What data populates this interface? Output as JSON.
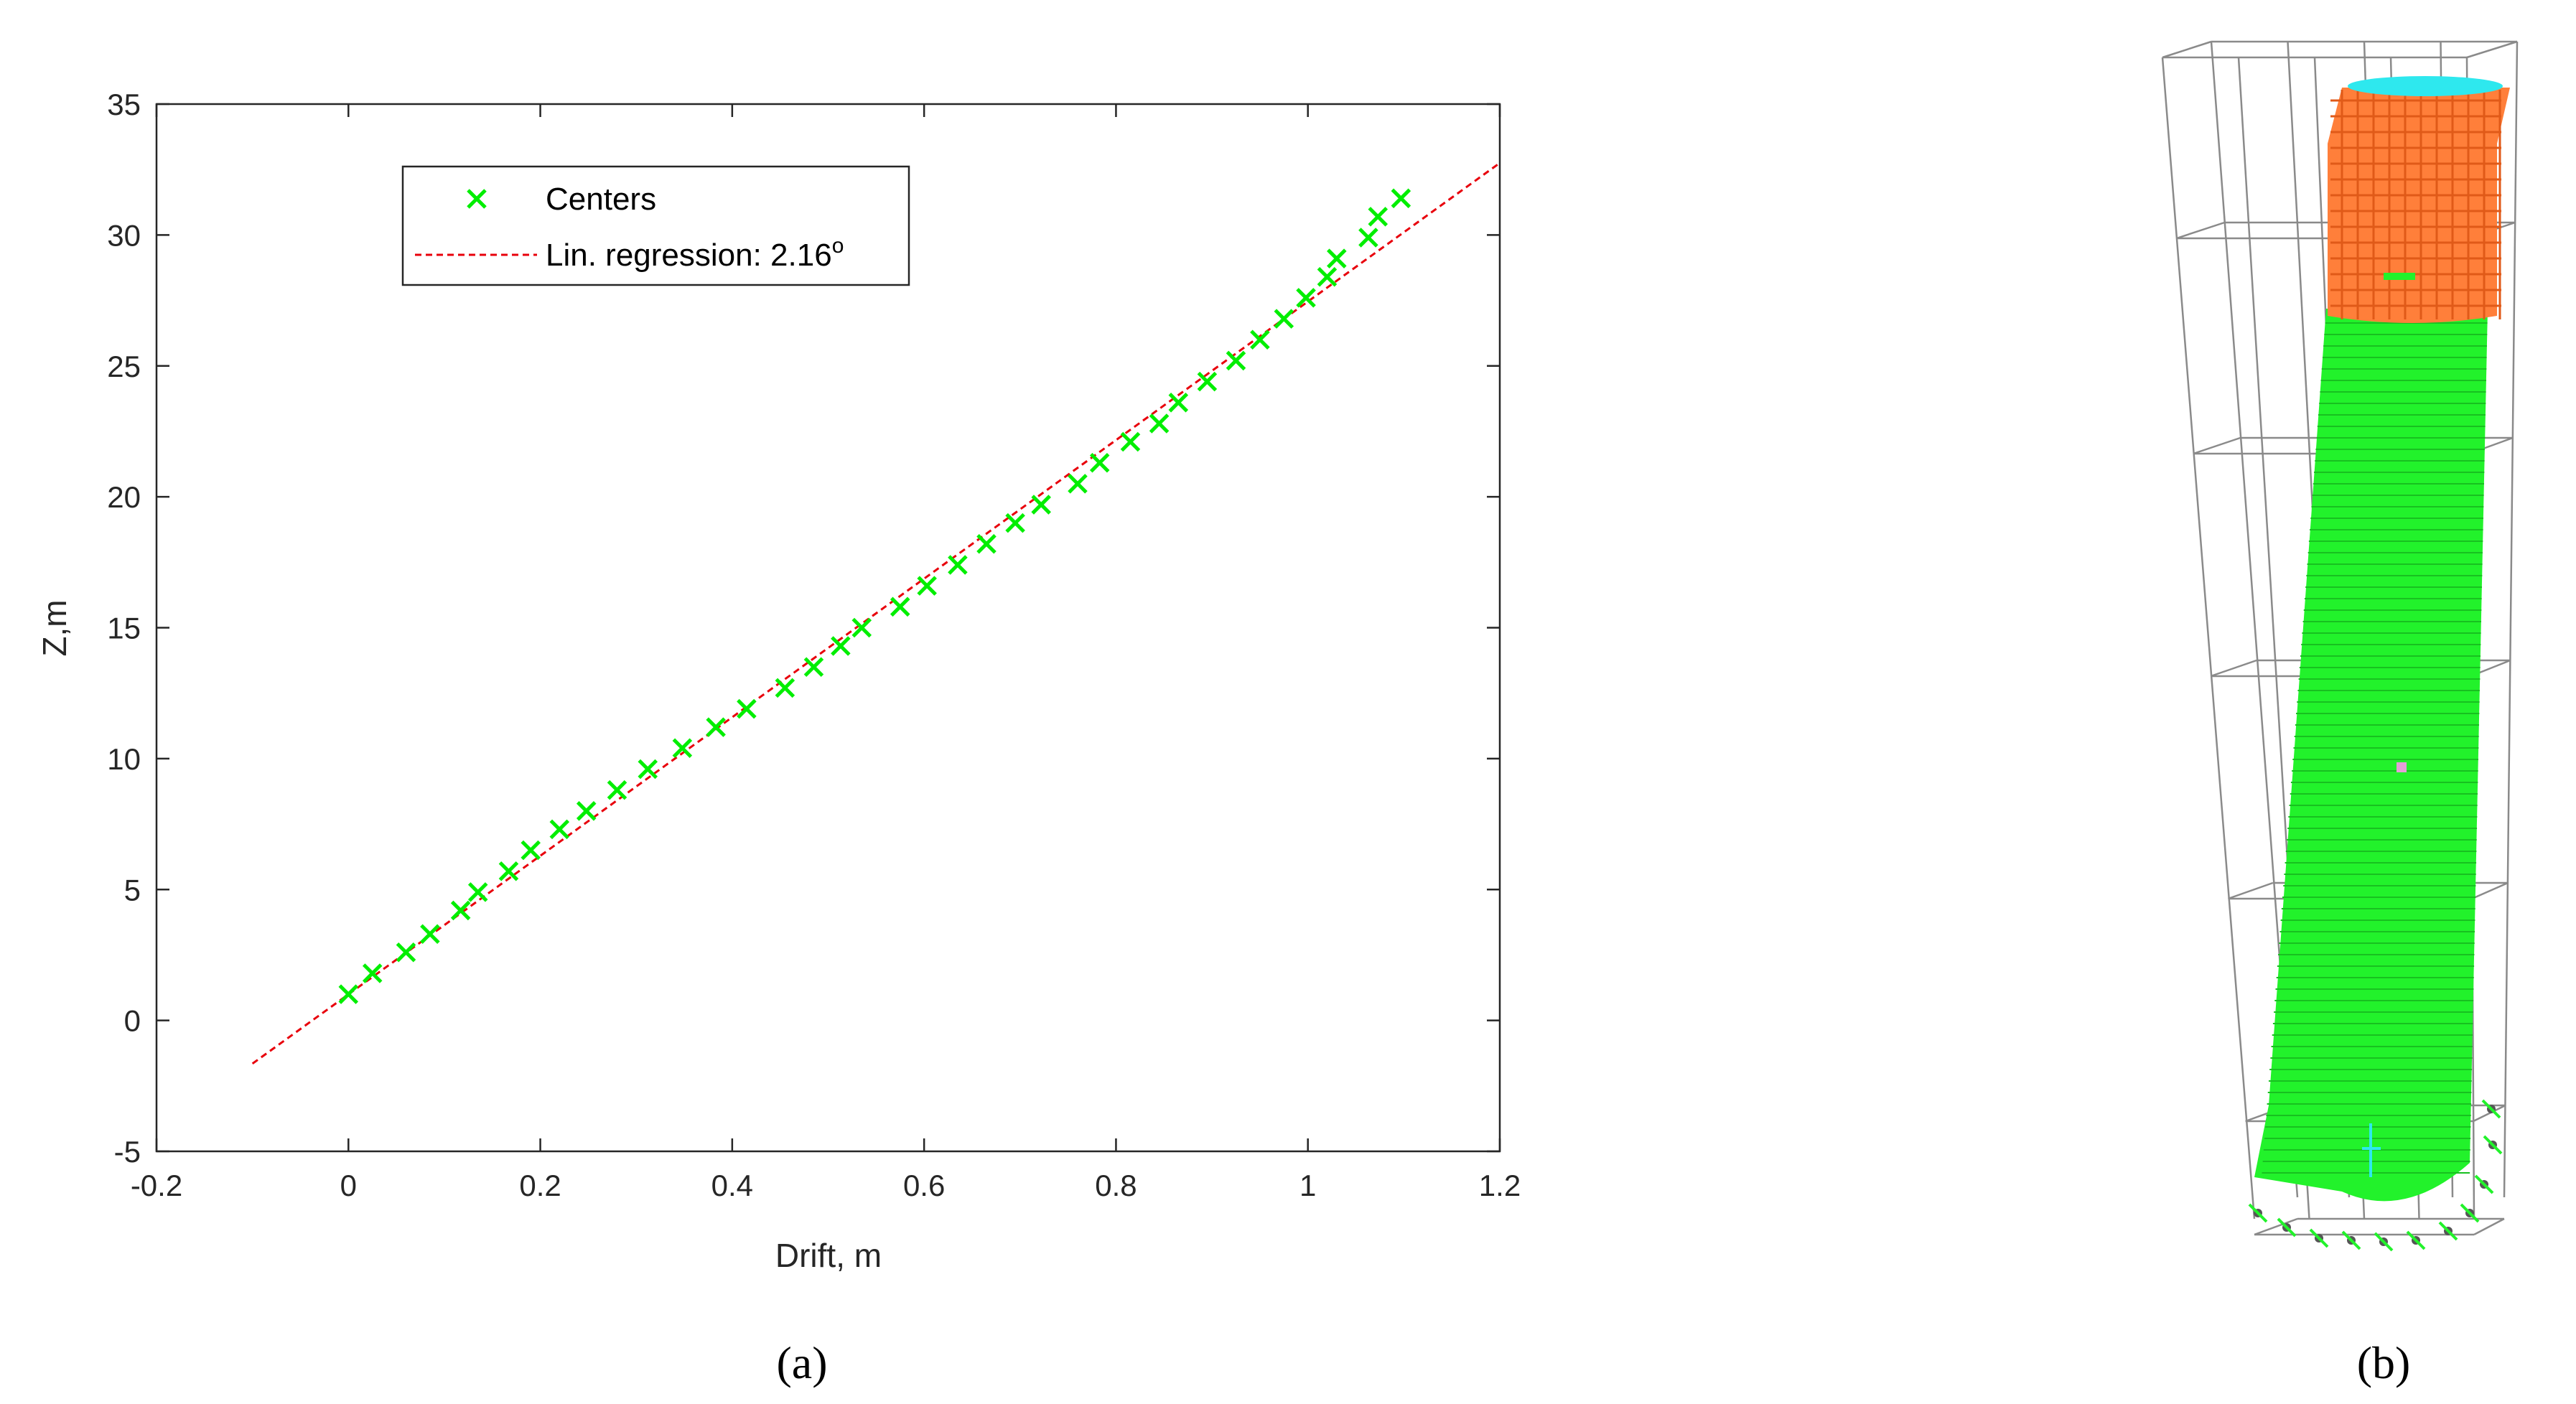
{
  "chart_data": {
    "type": "scatter",
    "xlabel": "Drift, m",
    "ylabel": "Z,m",
    "xlim": [
      -0.2,
      1.2
    ],
    "ylim": [
      -5,
      35
    ],
    "xticks": [
      -0.2,
      0,
      0.2,
      0.4,
      0.6,
      0.8,
      1,
      1.2
    ],
    "yticks": [
      -5,
      0,
      5,
      10,
      15,
      20,
      25,
      30,
      35
    ],
    "grid": false,
    "legend_position": "top-left",
    "series": [
      {
        "name": "Centers",
        "kind": "scatter",
        "marker": "x",
        "color": "#00ee00",
        "x": [
          0.0,
          0.025,
          0.06,
          0.085,
          0.117,
          0.135,
          0.167,
          0.19,
          0.22,
          0.248,
          0.28,
          0.312,
          0.348,
          0.383,
          0.415,
          0.455,
          0.485,
          0.513,
          0.535,
          0.575,
          0.603,
          0.635,
          0.665,
          0.695,
          0.722,
          0.76,
          0.783,
          0.815,
          0.845,
          0.865,
          0.895,
          0.925,
          0.95,
          0.975,
          0.998,
          1.02,
          1.03,
          1.063,
          1.073,
          1.097
        ],
        "y": [
          1.0,
          1.8,
          2.6,
          3.3,
          4.2,
          4.9,
          5.7,
          6.5,
          7.3,
          8.0,
          8.8,
          9.6,
          10.4,
          11.2,
          11.9,
          12.7,
          13.5,
          14.3,
          15.0,
          15.8,
          16.6,
          17.4,
          18.2,
          19.0,
          19.7,
          20.5,
          21.3,
          22.1,
          22.8,
          23.6,
          24.4,
          25.2,
          26.0,
          26.8,
          27.6,
          28.4,
          29.1,
          29.9,
          30.7,
          31.4
        ]
      },
      {
        "name": "Lin. regression: 2.16",
        "name_superscript": "o",
        "kind": "line",
        "style": "dashed",
        "color": "#e8000b",
        "x": [
          -0.1,
          1.2
        ],
        "y": [
          -1.65,
          32.75
        ]
      }
    ]
  },
  "panels": {
    "a_label": "(a)",
    "b_label": "(b)"
  },
  "model_b": {
    "shaft_color": "#22f22b",
    "top_color": "#ff7f3a",
    "cap_color": "#2ee8ee",
    "frame_color": "#8a8a8a"
  }
}
